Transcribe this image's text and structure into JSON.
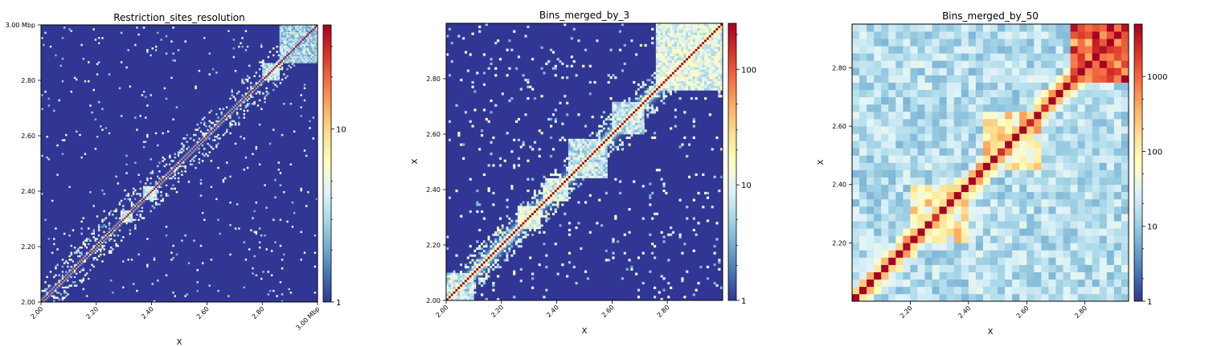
{
  "figure": {
    "panels": [
      {
        "title": "Restriction_sites_resolution",
        "xlabel": "X",
        "ylabel": ""
      },
      {
        "title": "Bins_merged_by_3",
        "xlabel": "X",
        "ylabel": "X"
      },
      {
        "title": "Bins_merged_by_50",
        "xlabel": "X",
        "ylabel": "X"
      }
    ]
  },
  "colormap": [
    "#313695",
    "#4575b4",
    "#74add1",
    "#abd9e9",
    "#e0f3f8",
    "#ffffbf",
    "#fee090",
    "#fdae61",
    "#f46d43",
    "#d73027",
    "#a50026"
  ],
  "chart_data": [
    {
      "type": "heatmap",
      "title": "Restriction_sites_resolution",
      "xlabel": "X",
      "ylabel": "",
      "x_range": [
        2.0,
        3.0
      ],
      "y_range": [
        2.0,
        3.0
      ],
      "x_ticks": [
        "2.00",
        "2.20",
        "2.40",
        "2.60",
        "2.80",
        "3.00 Mbp"
      ],
      "y_ticks": [
        "2.00",
        "2.20",
        "2.40",
        "2.60",
        "2.80",
        "3.00 Mbp"
      ],
      "x_tick_values": [
        2.0,
        2.2,
        2.4,
        2.6,
        2.8,
        3.0
      ],
      "y_tick_values": [
        2.0,
        2.2,
        2.4,
        2.6,
        2.8,
        3.0
      ],
      "colorbar": {
        "scale": "log",
        "min": 1,
        "max": 40,
        "labels": [
          "1",
          "10"
        ],
        "label_values": [
          1,
          10
        ],
        "minor_values": [
          2,
          3,
          4,
          5,
          20,
          30
        ]
      },
      "grid_bins": 160,
      "diagonal_width": 0.004,
      "background": 0.0,
      "noise": 0.06,
      "noise_near_diagonal": 0.18,
      "domains": [
        [
          2.29,
          2.33,
          0.35
        ],
        [
          2.37,
          2.42,
          0.35
        ],
        [
          2.8,
          2.86,
          0.3
        ],
        [
          2.86,
          3.0,
          0.25
        ]
      ]
    },
    {
      "type": "heatmap",
      "title": "Bins_merged_by_3",
      "xlabel": "X",
      "ylabel": "X",
      "x_range": [
        2.0,
        3.0
      ],
      "y_range": [
        2.0,
        3.0
      ],
      "x_ticks": [
        "2.00",
        "2.20",
        "2.40",
        "2.60",
        "2.80"
      ],
      "y_ticks": [
        "2.00",
        "2.20",
        "2.40",
        "2.60",
        "2.80"
      ],
      "x_tick_values": [
        2.0,
        2.2,
        2.4,
        2.6,
        2.8
      ],
      "y_tick_values": [
        2.0,
        2.2,
        2.4,
        2.6,
        2.8
      ],
      "colorbar": {
        "scale": "log",
        "min": 1,
        "max": 250,
        "labels": [
          "1",
          "10",
          "100"
        ],
        "label_values": [
          1,
          10,
          100
        ],
        "minor_values": [
          2,
          3,
          5,
          20,
          30,
          50,
          200
        ]
      },
      "grid_bins": 120,
      "diagonal_width": 0.012,
      "background": 0.0,
      "noise": 0.12,
      "noise_near_diagonal": 0.35,
      "domains": [
        [
          2.0,
          2.1,
          0.3
        ],
        [
          2.26,
          2.34,
          0.4
        ],
        [
          2.36,
          2.44,
          0.35
        ],
        [
          2.44,
          2.58,
          0.3
        ],
        [
          2.6,
          2.72,
          0.3
        ],
        [
          2.76,
          3.0,
          0.38
        ]
      ]
    },
    {
      "type": "heatmap",
      "title": "Bins_merged_by_50",
      "xlabel": "X",
      "ylabel": "X",
      "x_range": [
        2.0,
        2.95
      ],
      "y_range": [
        2.0,
        2.95
      ],
      "x_ticks": [
        "2.20",
        "2.40",
        "2.60",
        "2.80"
      ],
      "y_ticks": [
        "2.20",
        "2.40",
        "2.60",
        "2.80"
      ],
      "x_tick_values": [
        2.2,
        2.4,
        2.6,
        2.8
      ],
      "y_tick_values": [
        2.2,
        2.4,
        2.6,
        2.8
      ],
      "colorbar": {
        "scale": "log",
        "min": 1,
        "max": 5000,
        "labels": [
          "1",
          "10",
          "100",
          "1000"
        ],
        "label_values": [
          1,
          10,
          100,
          1000
        ],
        "minor_values": [
          2,
          5,
          20,
          50,
          200,
          500
        ]
      },
      "grid_bins": 38,
      "diagonal_width": 0.06,
      "background": 0.32,
      "noise": 0.1,
      "noise_near_diagonal": 0.1,
      "domains": [
        [
          2.74,
          2.95,
          0.82
        ],
        [
          2.44,
          2.64,
          0.55
        ],
        [
          2.2,
          2.4,
          0.5
        ]
      ]
    }
  ]
}
